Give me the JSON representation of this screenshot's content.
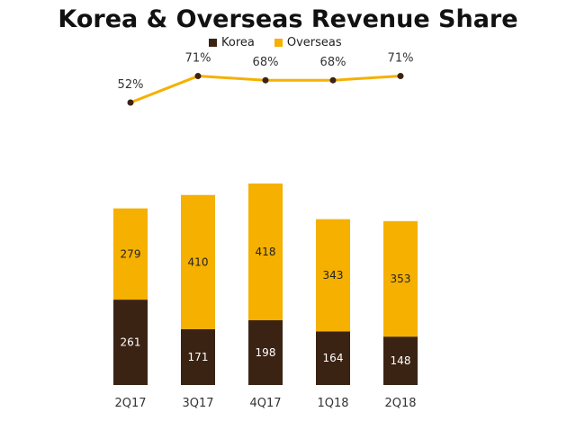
{
  "chart_data": {
    "type": "bar",
    "title": "Korea & Overseas Revenue Share",
    "categories": [
      "2Q17",
      "3Q17",
      "4Q17",
      "1Q18",
      "2Q18"
    ],
    "stacked": true,
    "series": [
      {
        "name": "Korea",
        "values": [
          261,
          171,
          198,
          164,
          148
        ],
        "color": "#3b2314"
      },
      {
        "name": "Overseas",
        "values": [
          279,
          410,
          418,
          343,
          353
        ],
        "color": "#f5b000"
      }
    ],
    "line": {
      "values": [
        52,
        71,
        68,
        68,
        71
      ],
      "labels": [
        "52%",
        "71%",
        "68%",
        "68%",
        "71%"
      ],
      "color": "#f5b000"
    },
    "legend_position": "top",
    "grid": false
  }
}
